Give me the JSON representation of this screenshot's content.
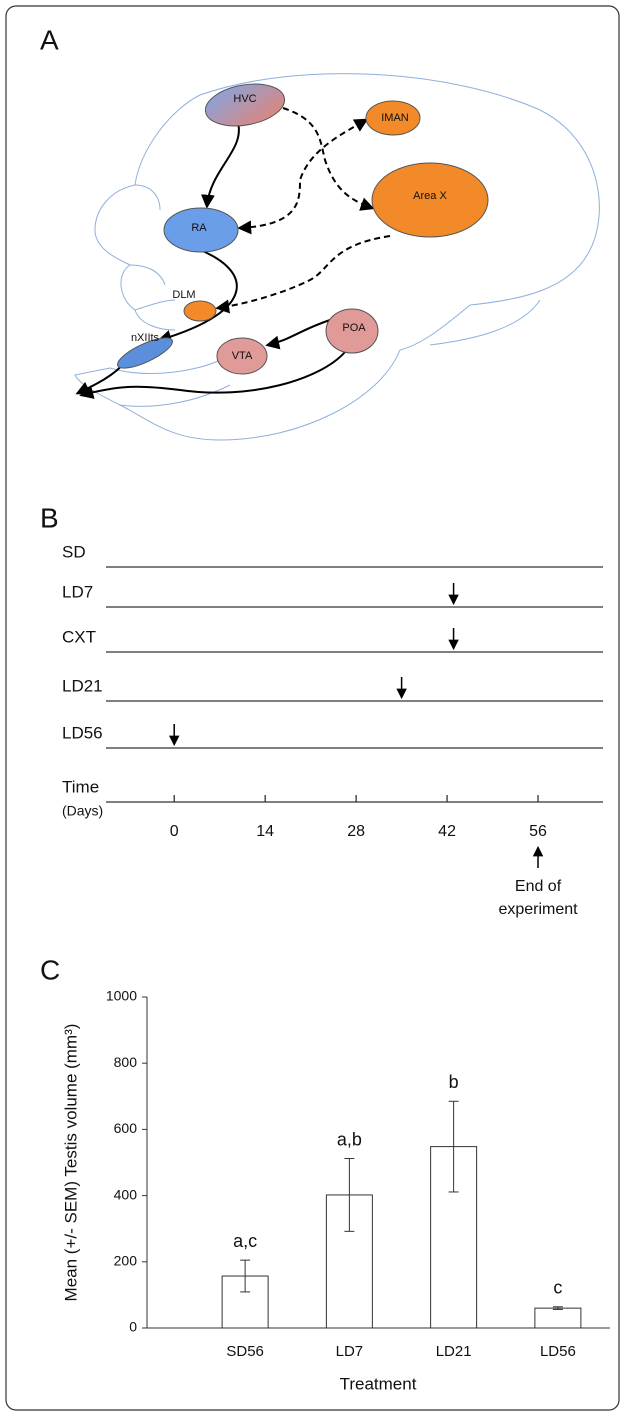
{
  "panels": [
    "A",
    "B",
    "C"
  ],
  "diagram": {
    "nodes": [
      {
        "label": "HVC"
      },
      {
        "label": "IMAN"
      },
      {
        "label": "Area X"
      },
      {
        "label": "RA"
      },
      {
        "label": "DLM"
      },
      {
        "label": "nXIIts"
      },
      {
        "label": "VTA"
      },
      {
        "label": "POA"
      }
    ]
  },
  "chart_data": [
    {
      "type": "timeline",
      "categories": [
        "SD",
        "LD7",
        "CXT",
        "LD21",
        "LD56"
      ],
      "values": [
        null,
        43,
        43,
        35,
        0
      ],
      "xlabel": "Time",
      "xlabel_unit": "(Days)",
      "xlim": [
        -10.5,
        66
      ],
      "xticks": [
        0,
        14,
        28,
        42,
        56
      ],
      "annotation": {
        "x": 56,
        "lines": [
          "End of",
          "experiment"
        ]
      },
      "color": "#000000"
    },
    {
      "type": "bar",
      "categories": [
        "SD56",
        "LD7",
        "LD21",
        "LD56"
      ],
      "values": [
        157,
        402,
        548,
        60
      ],
      "errors": [
        48,
        110,
        137,
        4
      ],
      "annotations": [
        "a,c",
        "a,b",
        "b",
        "c"
      ],
      "xlabel": "Treatment",
      "ylabel": "Mean (+/- SEM) Testis volume (mm³)",
      "ylim": [
        0,
        1000
      ],
      "yticks": [
        0,
        200,
        400,
        600,
        800,
        1000
      ],
      "color": "#ffffff"
    }
  ]
}
